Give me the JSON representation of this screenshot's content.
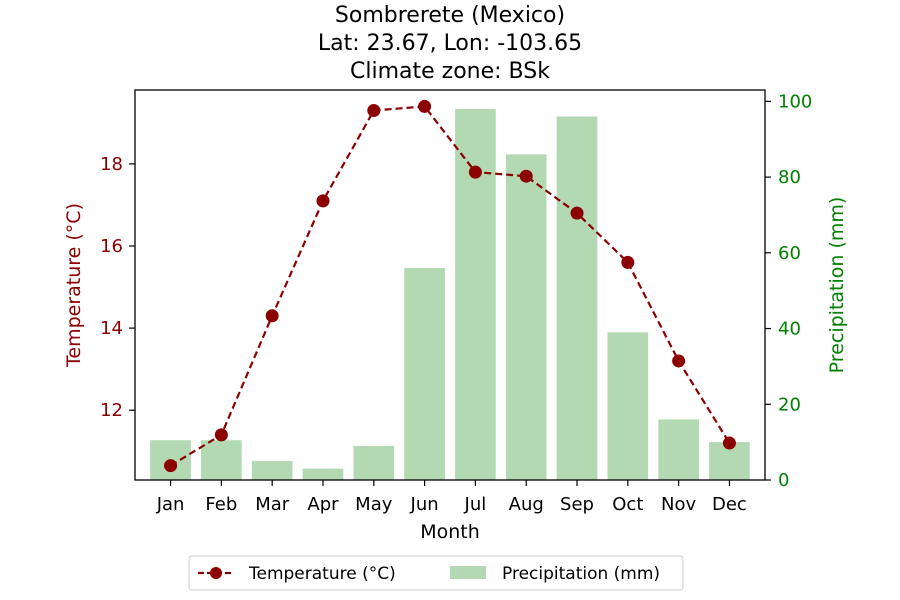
{
  "chart_data": {
    "type": "bar+line",
    "title_lines": [
      "Sombrerete (Mexico)",
      "Lat: 23.67, Lon: -103.65",
      "Climate zone: BSk"
    ],
    "categories": [
      "Jan",
      "Feb",
      "Mar",
      "Apr",
      "May",
      "Jun",
      "Jul",
      "Aug",
      "Sep",
      "Oct",
      "Nov",
      "Dec"
    ],
    "xlabel": "Month",
    "series": [
      {
        "name": "Temperature (°C)",
        "kind": "line",
        "axis": "left",
        "values": [
          10.65,
          11.4,
          14.3,
          17.1,
          19.3,
          19.4,
          17.8,
          17.7,
          16.8,
          15.6,
          13.2,
          11.2
        ]
      },
      {
        "name": "Precipitation (mm)",
        "kind": "bar",
        "axis": "right",
        "values": [
          10.5,
          10.5,
          5,
          3,
          9,
          56,
          98,
          86,
          96,
          39,
          16,
          10
        ]
      }
    ],
    "y_left": {
      "label": "Temperature (°C)",
      "ylim": [
        10.3,
        19.8
      ],
      "ticks": [
        12,
        14,
        16,
        18
      ],
      "tick_labels": [
        "12",
        "14",
        "16",
        "18"
      ]
    },
    "y_right": {
      "label": "Precipitation (mm)",
      "ylim": [
        0,
        103
      ],
      "ticks": [
        0,
        20,
        40,
        60,
        80,
        100
      ],
      "tick_labels": [
        "0",
        "20",
        "40",
        "60",
        "80",
        "100"
      ]
    },
    "legend_position": "bottom-center",
    "colors": {
      "temperature": "#8b0000",
      "precipitation_bar": "#b2d9b2",
      "right_axis": "#008000",
      "left_axis": "#8b0000"
    },
    "grid": false
  }
}
